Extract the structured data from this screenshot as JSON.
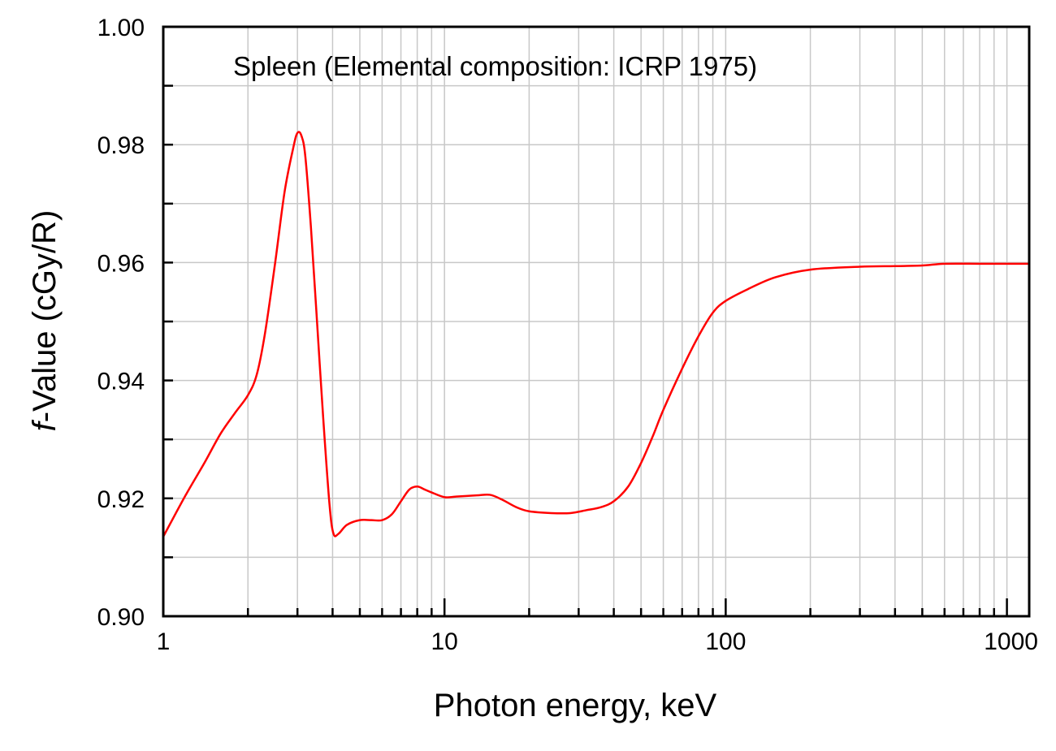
{
  "chart_data": {
    "type": "line",
    "title": "",
    "annotation": "Spleen (Elemental composition: ICRP 1975)",
    "xlabel": "Photon energy, keV",
    "ylabel_italic_prefix": "f",
    "ylabel_rest": "-Value  (cGy/R)",
    "x_scale": "log",
    "xlim": [
      1,
      1200
    ],
    "ylim": [
      0.9,
      1.0
    ],
    "x_ticks": [
      {
        "value": 1,
        "label": "1"
      },
      {
        "value": 10,
        "label": "10"
      },
      {
        "value": 100,
        "label": "100"
      },
      {
        "value": 1000,
        "label": "1000"
      }
    ],
    "y_ticks": [
      {
        "value": 0.9,
        "label": "0.90"
      },
      {
        "value": 0.92,
        "label": "0.92"
      },
      {
        "value": 0.94,
        "label": "0.94"
      },
      {
        "value": 0.96,
        "label": "0.96"
      },
      {
        "value": 0.98,
        "label": "0.98"
      },
      {
        "value": 1.0,
        "label": "1.00"
      }
    ],
    "grid": true,
    "legend": "none",
    "series": [
      {
        "color": "#ff0000",
        "x": [
          1,
          1.2,
          1.4,
          1.6,
          1.8,
          2.0,
          2.15,
          2.3,
          2.5,
          2.7,
          2.9,
          3.0,
          3.1,
          3.2,
          3.35,
          3.5,
          3.7,
          3.9,
          4.03,
          4.2,
          4.5,
          5.0,
          5.5,
          6.0,
          6.5,
          7.0,
          7.5,
          8.0,
          8.5,
          9.0,
          10,
          11,
          13,
          14.5,
          16,
          18,
          20,
          24,
          28,
          32,
          36,
          40,
          45,
          50,
          55,
          60,
          70,
          80,
          90,
          100,
          120,
          150,
          200,
          300,
          400,
          500,
          600,
          800,
          1000,
          1200
        ],
        "y": [
          0.9135,
          0.9205,
          0.926,
          0.931,
          0.9345,
          0.9375,
          0.941,
          0.948,
          0.96,
          0.972,
          0.9795,
          0.982,
          0.9815,
          0.978,
          0.966,
          0.952,
          0.934,
          0.919,
          0.914,
          0.914,
          0.9155,
          0.9163,
          0.9163,
          0.9163,
          0.9173,
          0.9195,
          0.9215,
          0.922,
          0.9215,
          0.921,
          0.9202,
          0.9203,
          0.9205,
          0.9206,
          0.9198,
          0.9185,
          0.9178,
          0.9175,
          0.9175,
          0.918,
          0.9185,
          0.9195,
          0.922,
          0.926,
          0.9305,
          0.935,
          0.942,
          0.9475,
          0.9515,
          0.9535,
          0.9555,
          0.9575,
          0.9588,
          0.9593,
          0.9594,
          0.9595,
          0.9598,
          0.9598,
          0.9598,
          0.9598
        ]
      }
    ]
  }
}
